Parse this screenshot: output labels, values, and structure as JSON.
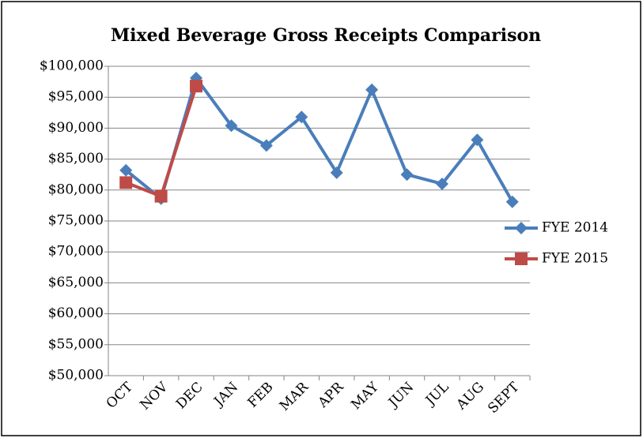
{
  "chart_data": {
    "type": "line",
    "title": "Mixed Beverage Gross Receipts Comparison",
    "categories": [
      "OCT",
      "NOV",
      "DEC",
      "JAN",
      "FEB",
      "MAR",
      "APR",
      "MAY",
      "JUN",
      "JUL",
      "AUG",
      "SEPT"
    ],
    "series": [
      {
        "name": "FYE 2014",
        "color": "#4a7ebb",
        "marker": "diamond",
        "values": [
          83200,
          78600,
          98100,
          90400,
          87200,
          91800,
          82800,
          96200,
          82500,
          81000,
          88100,
          78100
        ]
      },
      {
        "name": "FYE 2015",
        "color": "#be4b48",
        "marker": "square",
        "values": [
          81200,
          79000,
          96800,
          null,
          null,
          null,
          null,
          null,
          null,
          null,
          null,
          null
        ]
      }
    ],
    "ylim": [
      50000,
      100000
    ],
    "yticks": [
      {
        "value": 50000,
        "label": "$50,000"
      },
      {
        "value": 55000,
        "label": "$55,000"
      },
      {
        "value": 60000,
        "label": "$60,000"
      },
      {
        "value": 65000,
        "label": "$65,000"
      },
      {
        "value": 70000,
        "label": "$70,000"
      },
      {
        "value": 75000,
        "label": "$75,000"
      },
      {
        "value": 80000,
        "label": "$80,000"
      },
      {
        "value": 85000,
        "label": "$85,000"
      },
      {
        "value": 90000,
        "label": "$90,000"
      },
      {
        "value": 95000,
        "label": "$95,000"
      },
      {
        "value": 100000,
        "label": "$100,000"
      }
    ],
    "grid": true,
    "legend": "right"
  }
}
